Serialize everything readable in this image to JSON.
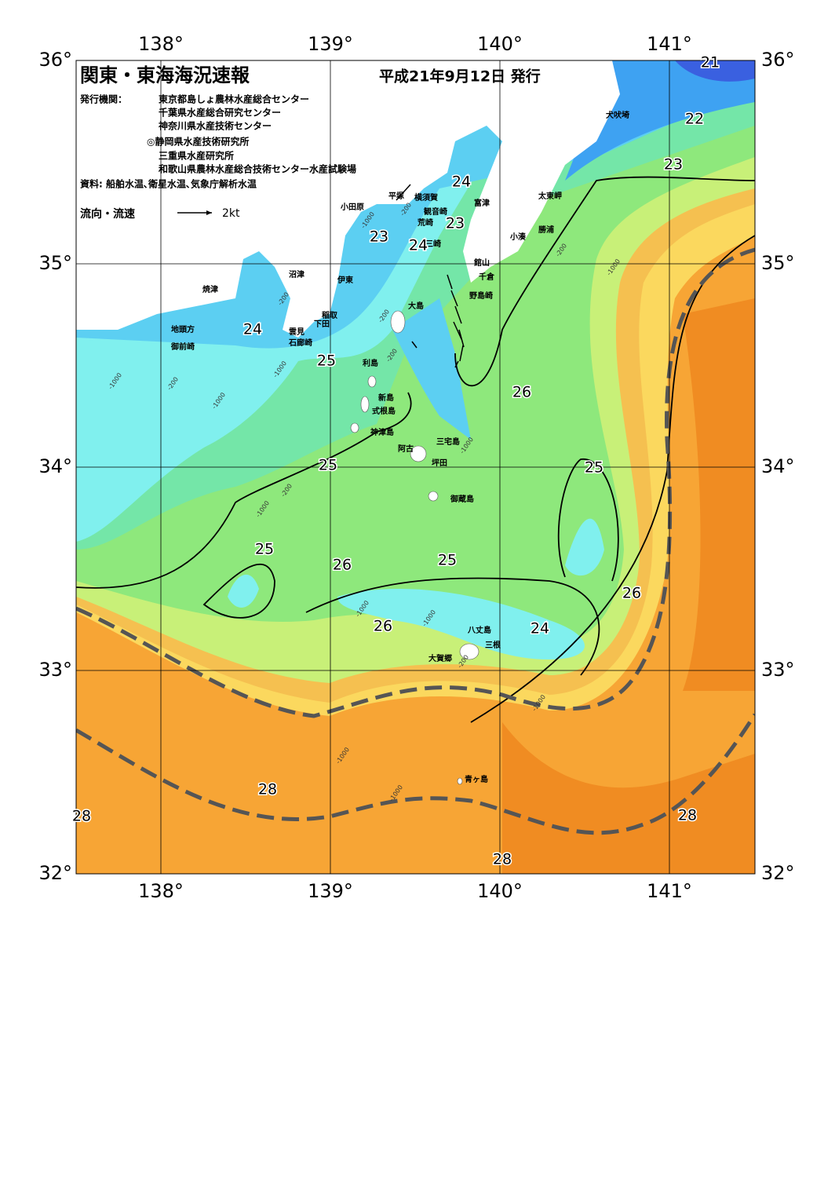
{
  "header": {
    "title": "関東・東海海況速報",
    "date": "平成21年9月12日 発行",
    "issuer_label": "発行機関：",
    "issuers": [
      "東京都島しょ農林水産総合センター",
      "千葉県水産総合研究センター",
      "神奈川県水産技術センター",
      "◎静岡県水産技術研究所",
      "三重県水産研究所",
      "和歌山県農林水産総合技術センター水産試験場"
    ],
    "source": "資料: 船舶水温､衛星水温､気象庁解析水温"
  },
  "legend": {
    "label": "流向・流速",
    "speed": "2kt"
  },
  "map": {
    "lon_ticks": [
      {
        "value": 138,
        "label": "138°"
      },
      {
        "value": 139,
        "label": "139°"
      },
      {
        "value": 140,
        "label": "140°"
      },
      {
        "value": 141,
        "label": "141°"
      }
    ],
    "lat_ticks": [
      {
        "value": 36,
        "label": "36°"
      },
      {
        "value": 35,
        "label": "35°"
      },
      {
        "value": 34,
        "label": "34°"
      },
      {
        "value": 33,
        "label": "33°"
      },
      {
        "value": 32,
        "label": "32°"
      }
    ],
    "places": [
      "犬吠埼",
      "太東岬",
      "勝浦",
      "小湊",
      "館山",
      "千倉",
      "野島崎",
      "富津",
      "観音崎",
      "横須賀",
      "平塚",
      "小田原",
      "荒崎",
      "三崎",
      "沼津",
      "伊東",
      "焼津",
      "稲取",
      "下田",
      "雲見",
      "石廊崎",
      "地頭方",
      "御前崎",
      "大島",
      "利島",
      "新島",
      "式根島",
      "神津島",
      "三宅島",
      "阿古",
      "坪田",
      "御蔵島",
      "八丈島",
      "三根",
      "大賀郷",
      "青ヶ島"
    ],
    "contour_labels": [
      "21",
      "22",
      "23",
      "24",
      "23",
      "23",
      "24",
      "24",
      "25",
      "26",
      "25",
      "25",
      "25",
      "26",
      "25",
      "26",
      "26",
      "24",
      "28",
      "28",
      "28",
      "28"
    ],
    "depth_labels": [
      "-200",
      "-1000",
      "-200",
      "-1000",
      "-200",
      "-200",
      "-1000",
      "-200",
      "-1000",
      "-1000",
      "-200",
      "-1000",
      "-1000",
      "-1000",
      "-200",
      "-1000",
      "-1000",
      "-1000",
      "-1000",
      "-200"
    ]
  }
}
